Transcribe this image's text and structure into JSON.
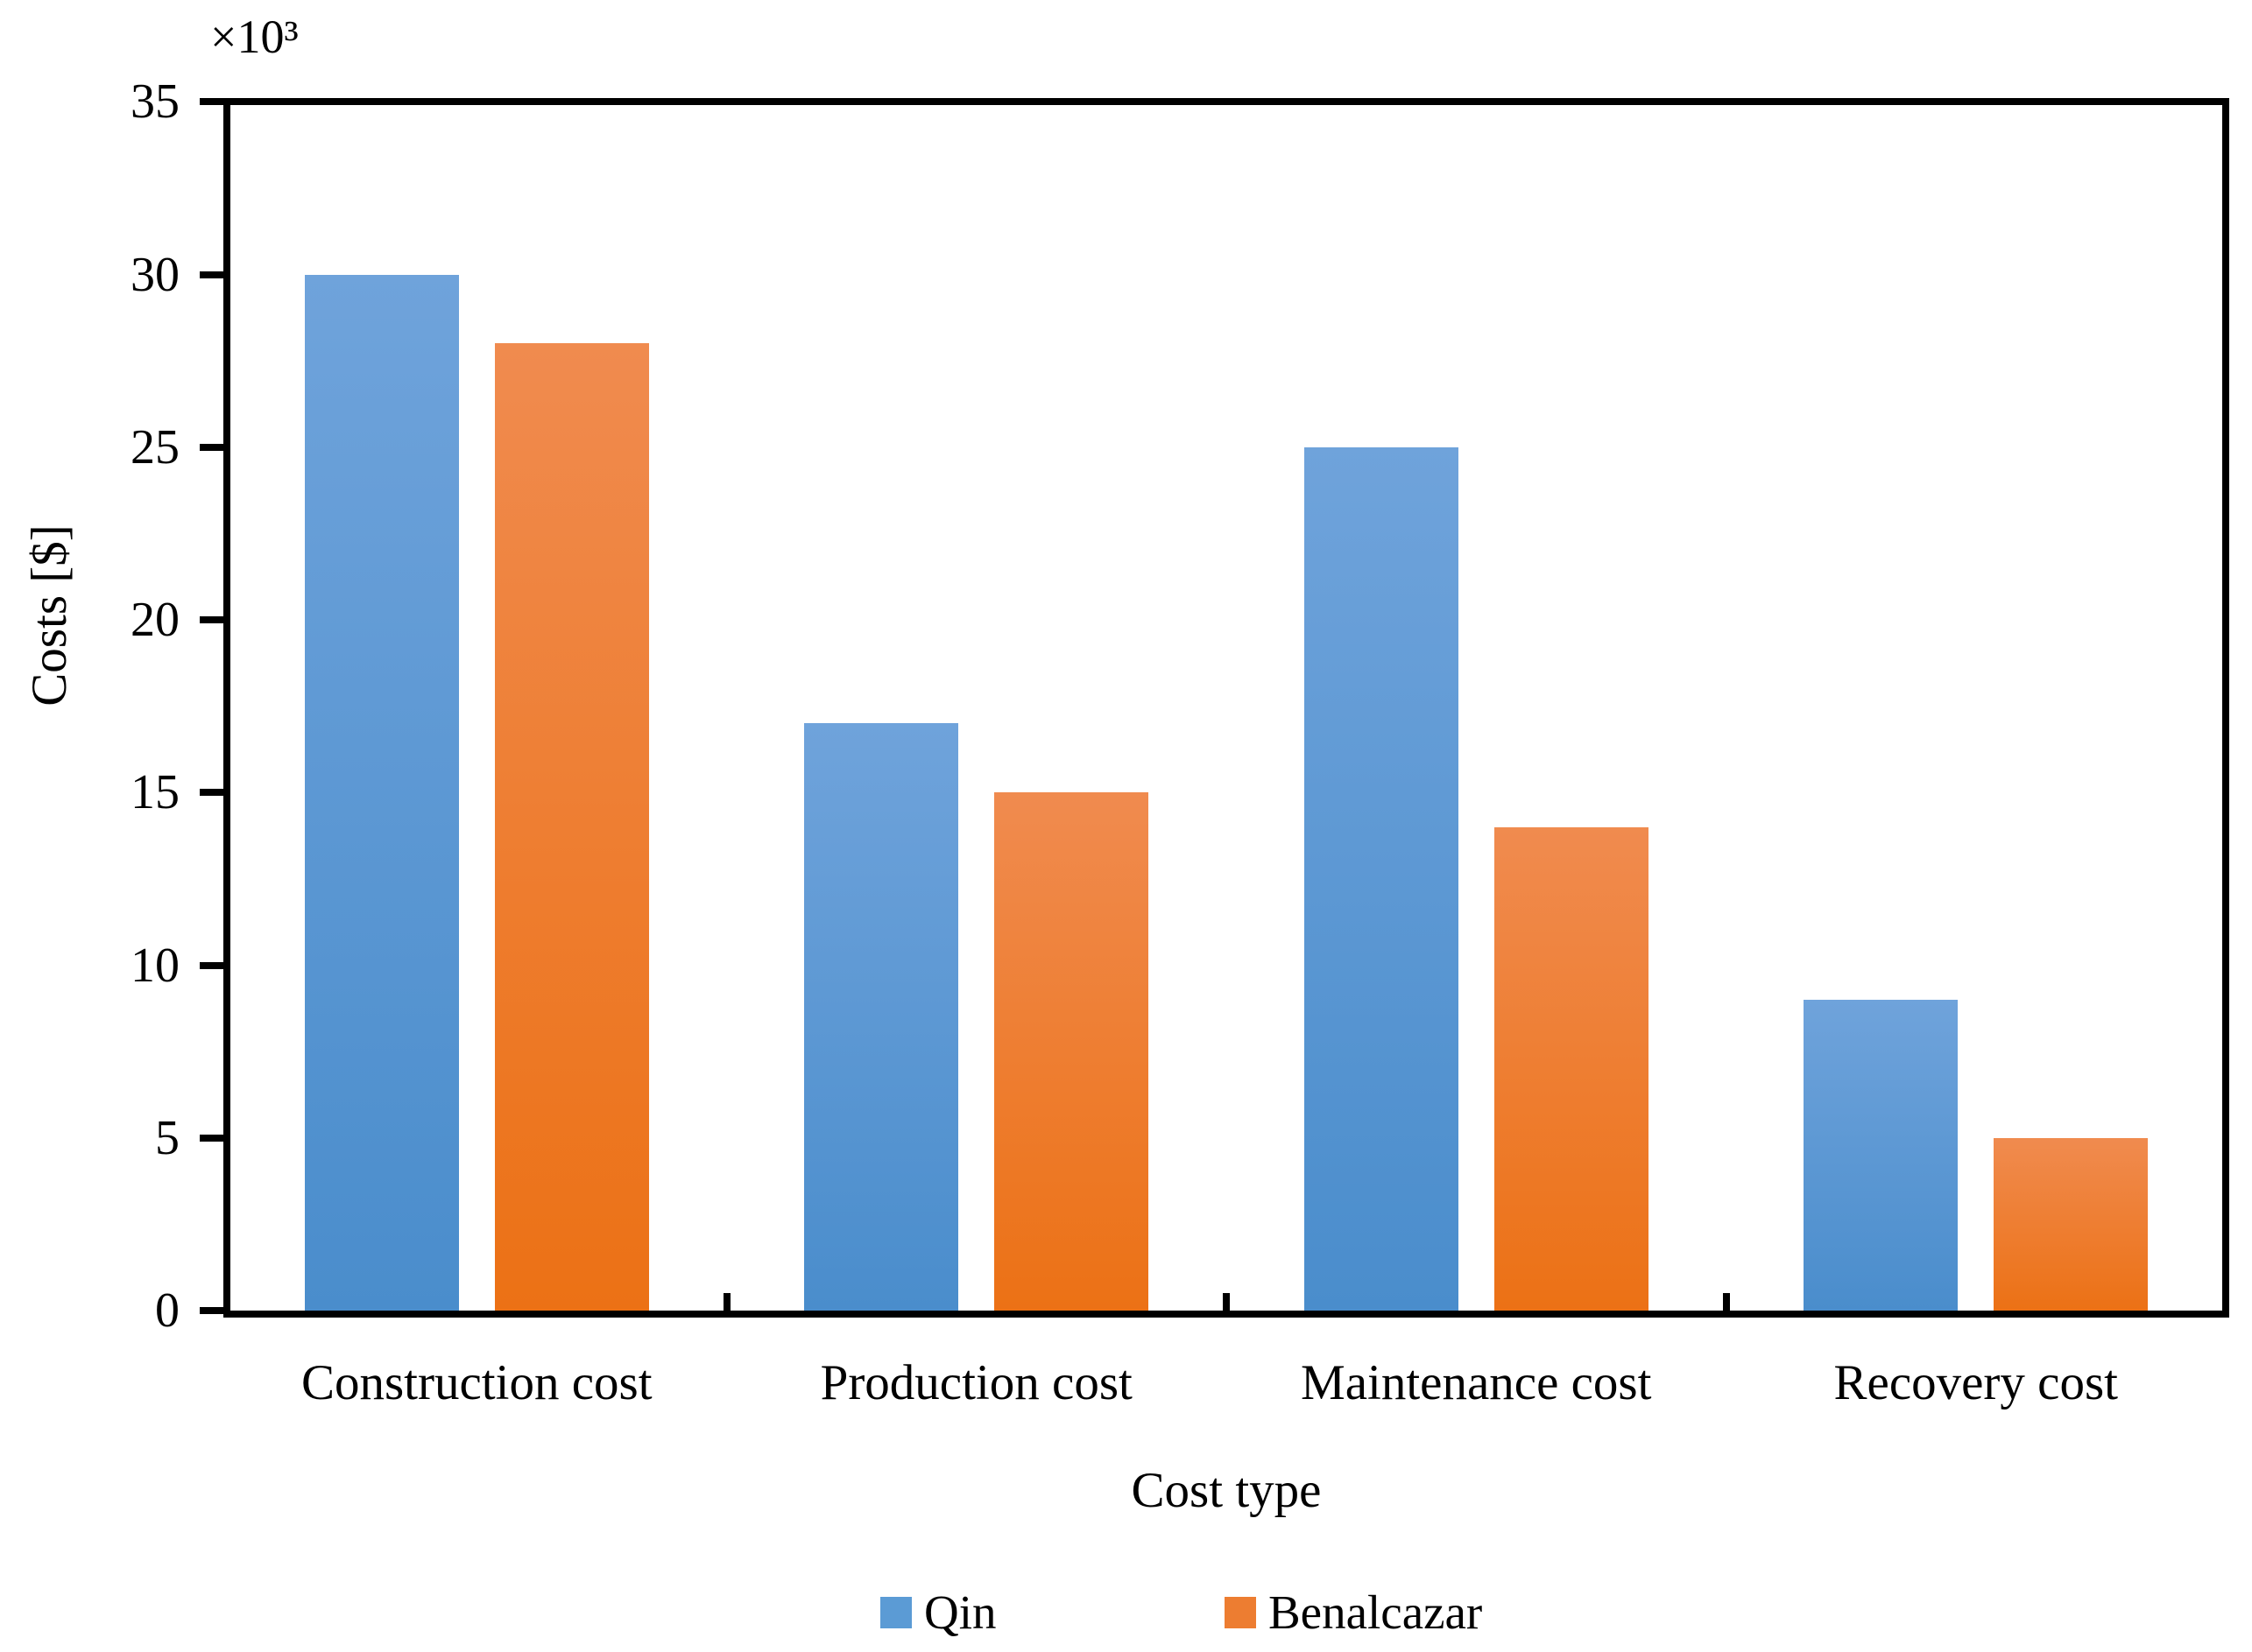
{
  "chart_data": {
    "type": "bar",
    "title": "",
    "categories": [
      "Construction cost",
      "Production cost",
      "Maintenance cost",
      "Recovery cost"
    ],
    "series": [
      {
        "name": "Qin",
        "values": [
          30,
          17,
          25,
          9
        ],
        "color": "#5B9BD5",
        "gradient_top": "#6FA3DB",
        "gradient_bottom": "#4A8DCC"
      },
      {
        "name": "Benalcazar",
        "values": [
          28,
          15,
          14,
          5
        ],
        "color": "#ED7D31",
        "gradient_top": "#F08B4F",
        "gradient_bottom": "#EC7115"
      }
    ],
    "xlabel": "Cost type",
    "ylabel": "Costs [$]",
    "y_multiplier_label": "×10³",
    "unit_scale": 1000,
    "ylim": [
      0,
      35
    ],
    "ytick_step": 5,
    "yticks": [
      0,
      5,
      10,
      15,
      20,
      25,
      30,
      35
    ],
    "grid": false,
    "legend_position": "bottom",
    "axis_color": "#000000",
    "background_color": "#FFFFFF"
  }
}
